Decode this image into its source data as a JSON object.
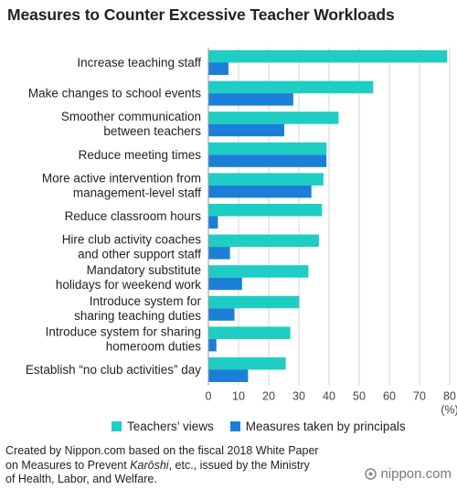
{
  "title": "Measures to Counter Excessive Teacher Workloads",
  "chart_data": {
    "type": "bar",
    "orientation": "horizontal",
    "categories": [
      [
        "Increase teaching staff"
      ],
      [
        "Make changes to school events"
      ],
      [
        "Smoother communication",
        "between teachers"
      ],
      [
        "Reduce meeting times"
      ],
      [
        "More active intervention from",
        "management-level staff"
      ],
      [
        "Reduce classroom hours"
      ],
      [
        "Hire club activity coaches",
        "and other support staff"
      ],
      [
        "Mandatory substitute",
        "holidays for weekend work"
      ],
      [
        "Introduce system for",
        "sharing teaching duties"
      ],
      [
        "Introduce system for sharing",
        "homeroom duties"
      ],
      [
        "Establish “no club activities” day"
      ]
    ],
    "series": [
      {
        "name": "Teachers’ views",
        "color": "#1ecdc4",
        "values": [
          79,
          54.5,
          43,
          39,
          38,
          37.5,
          36.5,
          33,
          30,
          27,
          25.5
        ]
      },
      {
        "name": "Measures taken by principals",
        "color": "#1b7fd8",
        "values": [
          6.5,
          28,
          25,
          39,
          34,
          3,
          7,
          11,
          8.5,
          2.5,
          13
        ]
      }
    ],
    "xlim": [
      0,
      80
    ],
    "xticks": [
      "0",
      "10",
      "20",
      "30",
      "40",
      "50",
      "60",
      "70",
      "80"
    ],
    "x_unit": "(%)",
    "grid": true,
    "legend_position": "bottom"
  },
  "footnote": {
    "line1": "Created by Nippon.com based on the fiscal 2018 White Paper",
    "line2_pre": "on Measures to Prevent ",
    "line2_em": "Karōshi",
    "line2_post": ", etc., issued by the Ministry",
    "line3": "of Health, Labor, and Welfare."
  },
  "brand": "nippon.com"
}
